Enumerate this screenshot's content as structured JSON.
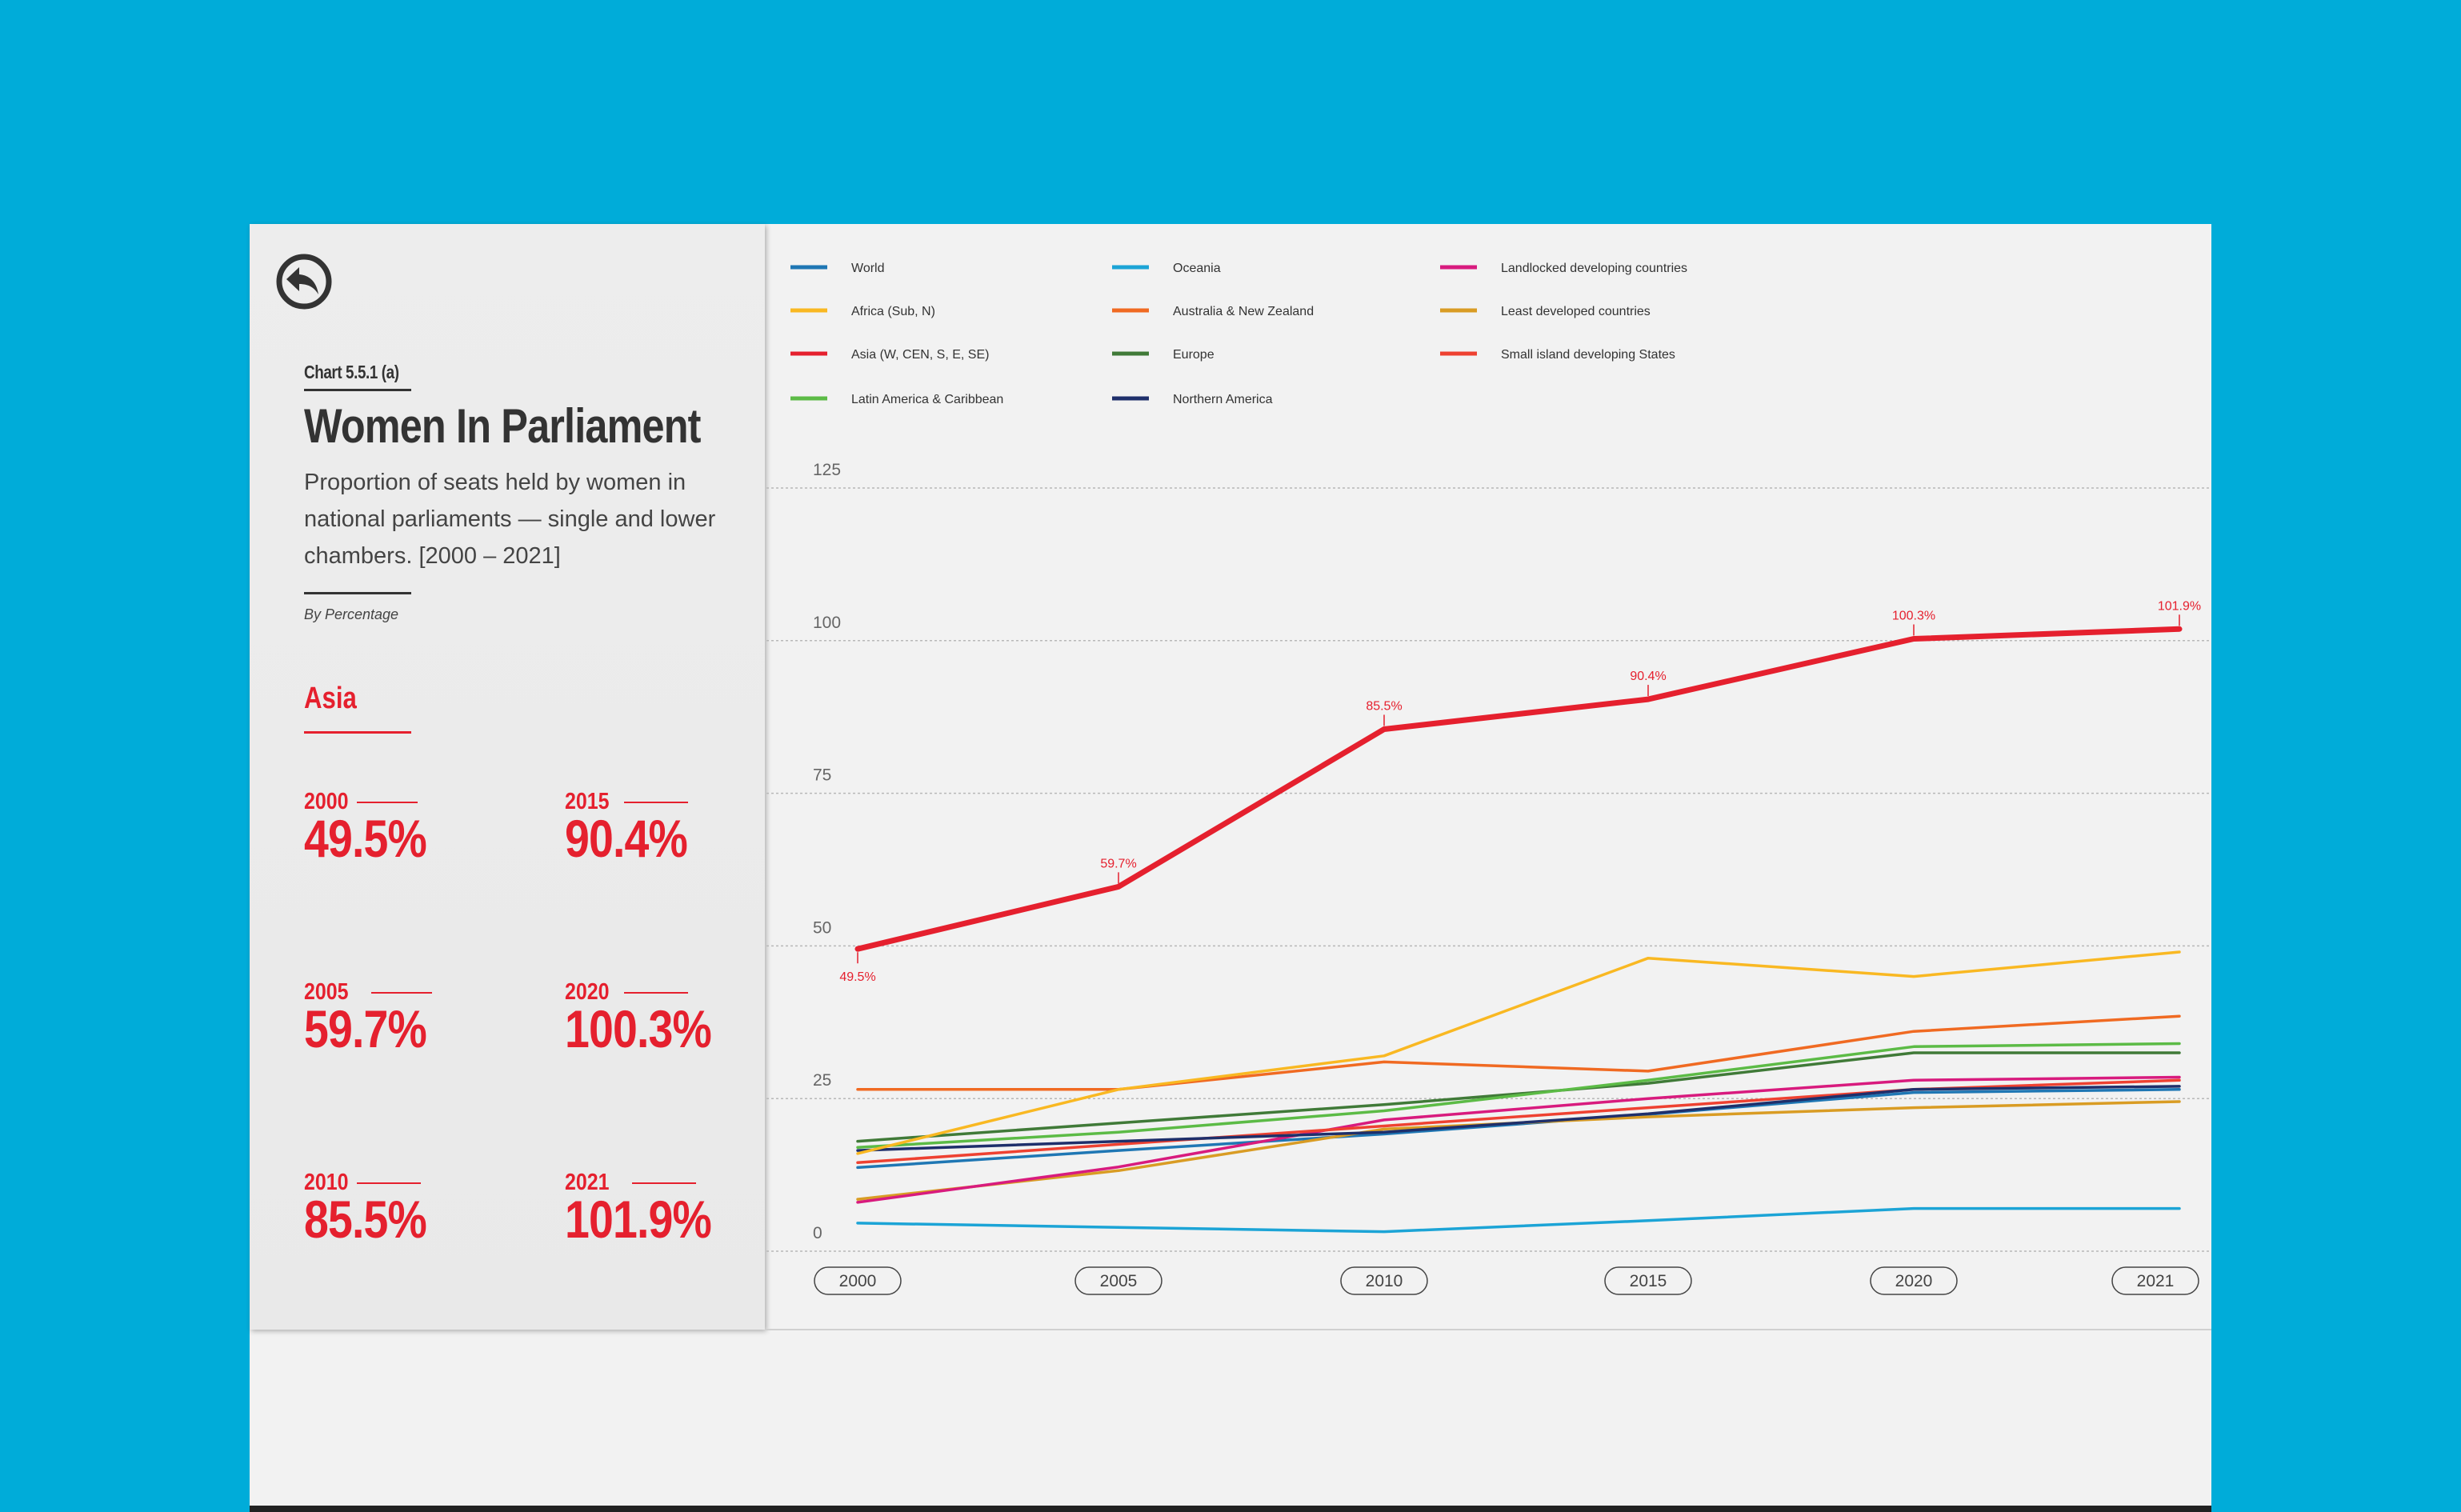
{
  "header": {
    "chart_id": "Chart 5.5.1 (a)",
    "title": "Women In Parliament",
    "subtitle": "Proportion of seats held by women in national parliaments — single and lower chambers. [2000 – 2021]",
    "units": "By Percentage"
  },
  "highlight": {
    "region": "Asia",
    "stats": [
      {
        "year": "2000",
        "value": "49.5%"
      },
      {
        "year": "2015",
        "value": "90.4%"
      },
      {
        "year": "2005",
        "value": "59.7%"
      },
      {
        "year": "2020",
        "value": "100.3%"
      },
      {
        "year": "2010",
        "value": "85.5%"
      },
      {
        "year": "2021",
        "value": "101.9%"
      }
    ]
  },
  "icons": {
    "back": "back-arrow-circle-icon"
  },
  "chart_data": {
    "type": "line",
    "ylim": [
      0,
      125
    ],
    "yticks": [
      0,
      25,
      50,
      75,
      100,
      125
    ],
    "x": [
      "2000",
      "2005",
      "2010",
      "2015",
      "2020",
      "2021"
    ],
    "highlight_series": "Asia (W, CEN, S, E, SE)",
    "legend": [
      {
        "name": "World",
        "color": "#1f77b4"
      },
      {
        "name": "Oceania",
        "color": "#1ca4d6"
      },
      {
        "name": "Landlocked developing countries",
        "color": "#d81b7e"
      },
      {
        "name": "Africa (Sub, N)",
        "color": "#f9b822"
      },
      {
        "name": "Australia & New Zealand",
        "color": "#f06a22"
      },
      {
        "name": "Least developed countries",
        "color": "#d99c24"
      },
      {
        "name": "Asia (W, CEN, S, E, SE)",
        "color": "#e5202e"
      },
      {
        "name": "Europe",
        "color": "#407a38"
      },
      {
        "name": "Small island developing States",
        "color": "#ee4131"
      },
      {
        "name": "Latin America & Caribbean",
        "color": "#5cbb46"
      },
      {
        "name": "Northern America",
        "color": "#1e2f6b"
      }
    ],
    "series": [
      {
        "name": "Oceania",
        "values": [
          4.6,
          3.9,
          3.2,
          5.0,
          7.0,
          7.0
        ]
      },
      {
        "name": "World",
        "values": [
          13.7,
          16.5,
          19.2,
          22.4,
          26.0,
          26.5
        ]
      },
      {
        "name": "Least developed countries",
        "values": [
          8.5,
          13.2,
          20.0,
          22.0,
          23.5,
          24.5
        ]
      },
      {
        "name": "Landlocked developing countries",
        "values": [
          8.0,
          13.8,
          21.5,
          25.0,
          28.0,
          28.5
        ]
      },
      {
        "name": "Small island developing States",
        "values": [
          14.5,
          17.5,
          20.5,
          23.5,
          26.5,
          28.0
        ]
      },
      {
        "name": "Northern America",
        "values": [
          16.5,
          18.0,
          19.5,
          22.5,
          26.5,
          27.0
        ]
      },
      {
        "name": "Europe",
        "values": [
          18.0,
          21.0,
          24.0,
          27.5,
          32.5,
          32.5
        ]
      },
      {
        "name": "Latin America & Caribbean",
        "values": [
          17.0,
          19.5,
          23.0,
          28.0,
          33.5,
          34.0
        ]
      },
      {
        "name": "Australia & New Zealand",
        "values": [
          26.5,
          26.5,
          31.0,
          29.5,
          36.0,
          38.5
        ]
      },
      {
        "name": "Africa (Sub, N)",
        "values": [
          16.0,
          26.5,
          32.0,
          48.0,
          45.0,
          49.0
        ]
      },
      {
        "name": "Asia (W, CEN, S, E, SE)",
        "values": [
          49.5,
          59.7,
          85.5,
          90.4,
          100.3,
          101.9
        ],
        "labels": [
          "49.5%",
          "59.7%",
          "85.5%",
          "90.4%",
          "100.3%",
          "101.9%"
        ]
      }
    ]
  }
}
